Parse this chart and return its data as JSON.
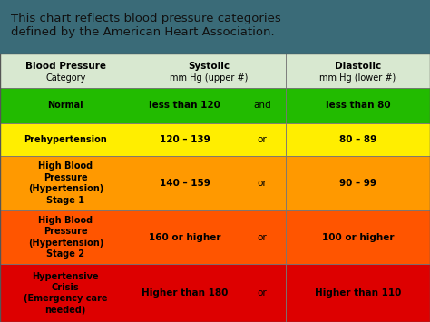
{
  "title": "This chart reflects blood pressure categories\ndefined by the American Heart Association.",
  "title_bg": "#3a6b78",
  "header_bg": "#d8e8d0",
  "rows": [
    {
      "category": "Normal",
      "systolic": "less than 120",
      "conjunction": "and",
      "diastolic": "less than 80",
      "bg_color": "#22bb00",
      "text_color": "#000000"
    },
    {
      "category": "Prehypertension",
      "systolic": "120 – 139",
      "conjunction": "or",
      "diastolic": "80 – 89",
      "bg_color": "#ffee00",
      "text_color": "#000000"
    },
    {
      "category": "High Blood\nPressure\n(Hypertension)\nStage 1",
      "systolic": "140 – 159",
      "conjunction": "or",
      "diastolic": "90 – 99",
      "bg_color": "#ff9900",
      "text_color": "#000000"
    },
    {
      "category": "High Blood\nPressure\n(Hypertension)\nStage 2",
      "systolic": "160 or higher",
      "conjunction": "or",
      "diastolic": "100 or higher",
      "bg_color": "#ff5500",
      "text_color": "#000000"
    },
    {
      "category": "Hypertensive\nCrisis\n(Emergency care\nneeded)",
      "systolic": "Higher than 180",
      "conjunction": "or",
      "diastolic": "Higher than 110",
      "bg_color": "#dd0000",
      "text_color": "#000000"
    }
  ],
  "figsize": [
    4.74,
    3.55
  ],
  "dpi": 100
}
